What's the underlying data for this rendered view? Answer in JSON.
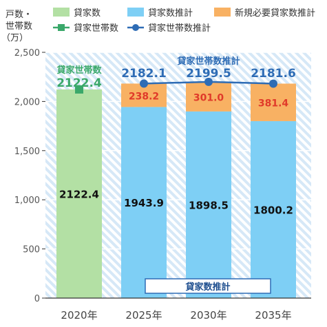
{
  "chart_data": {
    "type": "bar",
    "ylabel_lines": [
      "戸数・",
      "世帯数",
      "（万）"
    ],
    "ylim": [
      0,
      2500
    ],
    "yticks": [
      0,
      500,
      1000,
      1500,
      2000,
      2500
    ],
    "ytick_labels": [
      "0",
      "500",
      "1,000",
      "1,500",
      "2,000",
      "2,500"
    ],
    "grid": true,
    "categories": [
      "2020年",
      "2025年",
      "2030年",
      "2035年"
    ],
    "legend": {
      "placement": "top",
      "items": [
        {
          "label": "貸家数",
          "kind": "bar",
          "color": "#b3e0a4"
        },
        {
          "label": "貸家数推計",
          "kind": "bar",
          "color": "#7ecff5"
        },
        {
          "label": "新規必要貸家数推計",
          "kind": "bar",
          "color": "#f8b163"
        },
        {
          "label": "貸家世帯数",
          "kind": "line",
          "color": "#3aa86a"
        },
        {
          "label": "貸家世帯数推計",
          "kind": "line",
          "color": "#2e6cb5"
        }
      ]
    },
    "series": [
      {
        "name": "貸家数",
        "values": [
          2122.4,
          null,
          null,
          null
        ],
        "labels": [
          "2122.4",
          "",
          "",
          ""
        ],
        "color": "#b3e0a4"
      },
      {
        "name": "貸家数推計",
        "values": [
          null,
          1943.9,
          1898.5,
          1800.2
        ],
        "labels": [
          "",
          "1943.9",
          "1898.5",
          "1800.2"
        ],
        "color": "#7ecff5"
      },
      {
        "name": "新規必要貸家数推計",
        "values": [
          null,
          238.2,
          301.0,
          381.4
        ],
        "labels": [
          "",
          "238.2",
          "301.0",
          "381.4"
        ],
        "color": "#f8b163"
      },
      {
        "name": "貸家世帯数",
        "values": [
          2122.4,
          null,
          null,
          null
        ],
        "labels": [
          "2122.4",
          "",
          "",
          ""
        ],
        "color": "#3aa86a"
      },
      {
        "name": "貸家世帯数推計",
        "values": [
          null,
          2182.1,
          2199.5,
          2181.6
        ],
        "labels": [
          "",
          "2182.1",
          "2199.5",
          "2181.6"
        ],
        "color": "#2e6cb5"
      }
    ],
    "annotations": {
      "green_point_label": "貸家世帯数",
      "line_label": "貸家世帯数推計",
      "estimate_box_label": "貸家数推計"
    },
    "colors": {
      "hatch_background": "#d6e8f7",
      "axis": "#333333",
      "tick_text": "#555555",
      "total_label_blue": "#2e6cb5",
      "total_label_green": "#3aa86a",
      "orange_label": "#e03a2a",
      "bar_value_text": "#111111"
    }
  }
}
